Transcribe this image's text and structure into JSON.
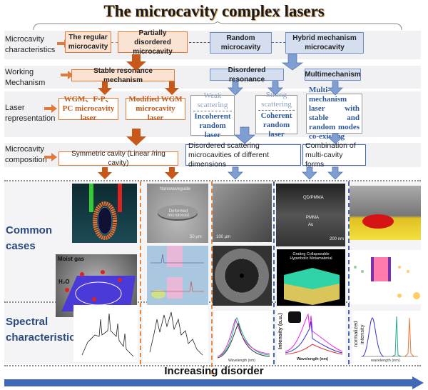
{
  "title": "The microcavity complex lasers",
  "rows": {
    "characteristics": "Microcavity characteristics",
    "mechanism": "Working Mechanism",
    "representation": "Laser representation",
    "composition": "Microcavity composition",
    "cases": "Common cases",
    "spectral": "Spectral characteristic"
  },
  "characteristics": {
    "regular": "The regular microcavity",
    "partial": "Partially disordered microcavity",
    "random": "Random microcavity",
    "hybrid": "Hybrid mechanism microcavity"
  },
  "mechanism": {
    "stable": "Stable resonance mechanism",
    "disordered": "Disordered resonance",
    "multi": "Multimechanism"
  },
  "representation": {
    "wgm": "WGM、F-P、PC microcavity laser",
    "modified": "Modified WGM microcavity laser",
    "weak_top": "Weak scattering",
    "weak_bottom": "Incoherent random laser",
    "strong_top": "Strong scattering",
    "strong_bottom": "Coherent random laser",
    "multi": "Multi-mechanism laser with stable and random modes co-existing"
  },
  "composition": {
    "symmetric": "Symmetric cavity (Linear /ring cavity)",
    "disordered": "Disordered scattering microcavities of different dimensions",
    "combination": "Combination of multi-cavity forms"
  },
  "cases": {
    "moist_gas": "Moist gas",
    "h2o": "H₂O",
    "nanowaveguide": "Nanowaveguide",
    "microtoroid": "Deformed microtoroid",
    "scale50": "50 μm",
    "scale100": "100 μm",
    "qdpmma": "QD/PMMA",
    "pmma": "PMMA",
    "au": "Au",
    "scale200": "200 nm",
    "grating": "Grating Collapseable Hyperbolic Metamaterial"
  },
  "spectral": {
    "wavelength_nm": "Wavelength (nm)",
    "intensity": "Intensity (a.u.)",
    "norm": "normalized intensity",
    "wavelength_lower": "wavelength (nm)"
  },
  "footer": {
    "axis_label": "Increasing disorder"
  },
  "colors": {
    "orange": "#d9621f",
    "blue": "#4a73b8",
    "band": "#f1f1f3"
  }
}
